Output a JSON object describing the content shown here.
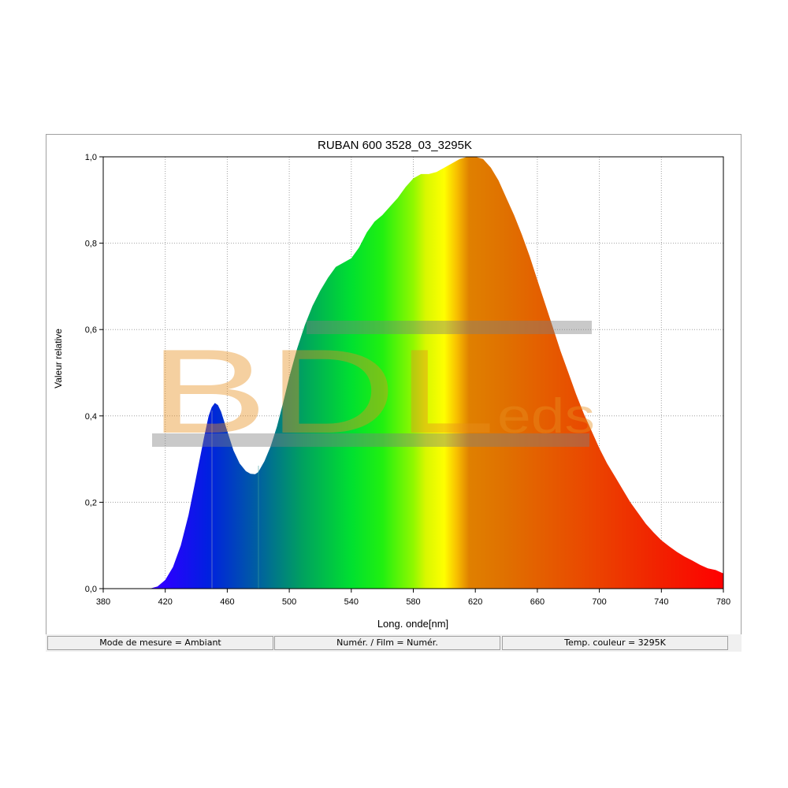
{
  "chart_data": {
    "type": "area",
    "title": "RUBAN 600 3528_03_3295K",
    "xlabel": "Long. onde[nm]",
    "ylabel": "Valeur relative",
    "xlim": [
      380,
      780
    ],
    "ylim": [
      0,
      1
    ],
    "x_ticks": [
      "380",
      "420",
      "460",
      "500",
      "540",
      "580",
      "620",
      "660",
      "700",
      "740",
      "780"
    ],
    "y_ticks": [
      "0,0",
      "0,2",
      "0,4",
      "0,6",
      "0,8",
      "1,0"
    ],
    "grid": true,
    "fill": "visible-spectrum color gradient",
    "series": [
      {
        "x": [
          380,
          410,
          415,
          420,
          425,
          430,
          435,
          440,
          445,
          448,
          450,
          452,
          454,
          456,
          460,
          464,
          468,
          472,
          475,
          478,
          480,
          484,
          488,
          492,
          496,
          500,
          505,
          510,
          515,
          520,
          525,
          530,
          535,
          540,
          545,
          550,
          555,
          560,
          565,
          570,
          575,
          580,
          585,
          590,
          595,
          600,
          605,
          610,
          615,
          620,
          625,
          630,
          635,
          640,
          645,
          650,
          655,
          660,
          665,
          670,
          675,
          680,
          685,
          690,
          695,
          700,
          705,
          710,
          715,
          720,
          725,
          730,
          735,
          740,
          745,
          750,
          755,
          760,
          765,
          770,
          775,
          780
        ],
        "values": [
          0,
          0,
          0.005,
          0.02,
          0.05,
          0.1,
          0.17,
          0.26,
          0.35,
          0.4,
          0.42,
          0.43,
          0.425,
          0.41,
          0.365,
          0.32,
          0.29,
          0.272,
          0.266,
          0.265,
          0.27,
          0.295,
          0.33,
          0.375,
          0.43,
          0.49,
          0.555,
          0.61,
          0.655,
          0.69,
          0.72,
          0.745,
          0.755,
          0.765,
          0.79,
          0.825,
          0.85,
          0.865,
          0.885,
          0.905,
          0.93,
          0.95,
          0.96,
          0.96,
          0.965,
          0.975,
          0.985,
          0.995,
          1.0,
          1.0,
          0.995,
          0.975,
          0.945,
          0.905,
          0.865,
          0.82,
          0.77,
          0.715,
          0.66,
          0.605,
          0.55,
          0.5,
          0.45,
          0.405,
          0.365,
          0.325,
          0.29,
          0.26,
          0.23,
          0.2,
          0.175,
          0.15,
          0.13,
          0.112,
          0.098,
          0.085,
          0.074,
          0.065,
          0.055,
          0.047,
          0.043,
          0.035
        ]
      }
    ]
  },
  "watermark": {
    "text": "BDLeds"
  },
  "status": {
    "mode": "Mode de mesure = Ambiant",
    "film": "Numér. / Film = Numér.",
    "temp": "Temp. couleur = 3295K"
  }
}
